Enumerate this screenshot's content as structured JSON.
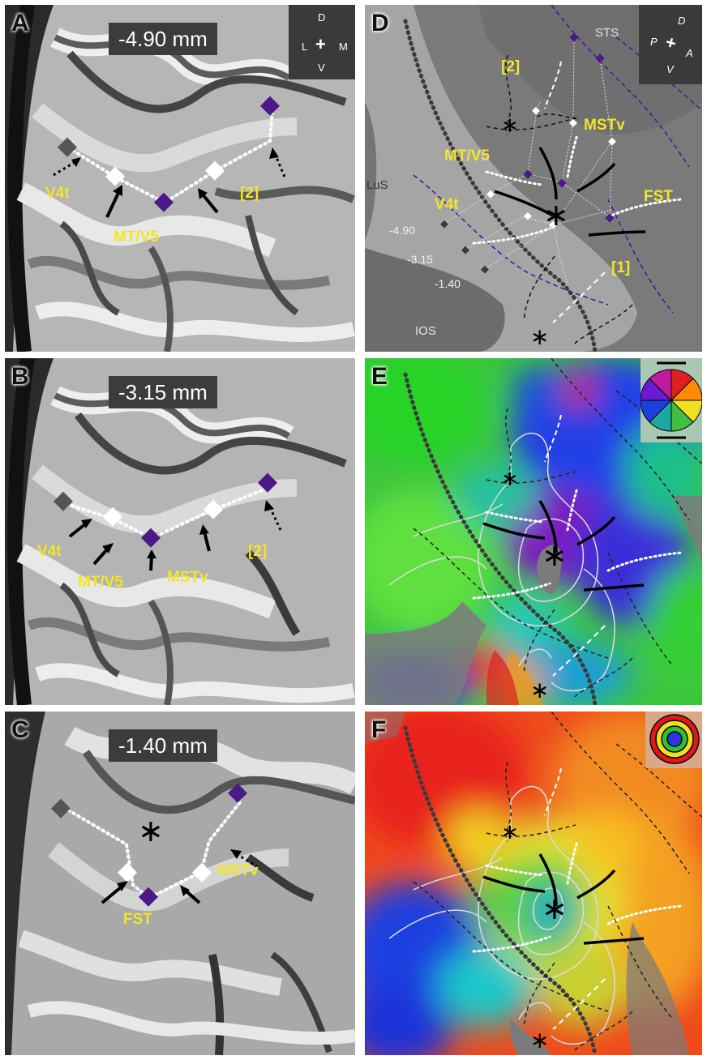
{
  "panel_a": {
    "letter": "A",
    "depth": "-4.90 mm",
    "labels": {
      "v4t": "V4t",
      "mt": "MT/V5",
      "area2": "[2]"
    },
    "orient": {
      "d": "D",
      "l": "L",
      "m": "M",
      "v": "V"
    }
  },
  "panel_b": {
    "letter": "B",
    "depth": "-3.15 mm",
    "labels": {
      "v4t": "V4t",
      "mt": "MT/V5",
      "mstv": "MSTv",
      "area2": "[2]"
    }
  },
  "panel_c": {
    "letter": "C",
    "depth": "-1.40 mm",
    "labels": {
      "fst": "FST",
      "mstv": "MSTv"
    }
  },
  "panel_d": {
    "letter": "D",
    "labels": {
      "sts": "STS",
      "lus": "LuS",
      "ios": "IOS",
      "area2": "[2]",
      "area1": "[1]",
      "mstv": "MSTv",
      "mt": "MT/V5",
      "v4t": "V4t",
      "fst": "FST"
    },
    "slices": [
      "-4.90",
      "-3.15",
      "-1.40"
    ],
    "orient": {
      "d": "D",
      "p": "P",
      "a": "A",
      "v": "V"
    }
  },
  "panel_e": {
    "letter": "E",
    "legend": "polar-angle-wheel"
  },
  "panel_f": {
    "letter": "F",
    "legend": "eccentricity-rings"
  },
  "colors": {
    "label": "#f2e52a",
    "diamond_dark": "#555555",
    "diamond_purple": "#4b1a86",
    "diamond_white": "#ffffff"
  }
}
